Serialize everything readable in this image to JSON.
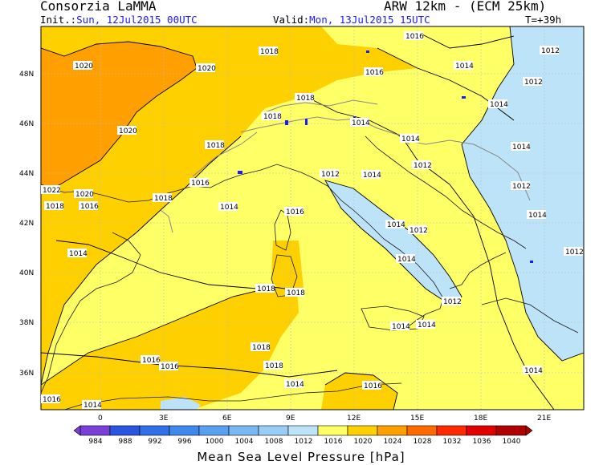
{
  "header": {
    "title": "Consorzia LaMMA",
    "model": "ARW 12km - (ECM 25km)",
    "init_label": "Init.:",
    "init_value": "Sun, 12Jul2015 00UTC",
    "valid_label": "Valid:",
    "valid_value": "Mon, 13Jul2015 15UTC",
    "lead": "T=+39h"
  },
  "map": {
    "lat_labels": [
      "48N",
      "46N",
      "44N",
      "42N",
      "40N",
      "38N",
      "36N"
    ],
    "lon_labels": [
      "0",
      "3E",
      "6E",
      "9E",
      "12E",
      "15E",
      "18E",
      "21E"
    ],
    "contour_labels": [
      {
        "text": "1016",
        "k": 0
      },
      {
        "text": "1018",
        "k": 1
      },
      {
        "text": "1020",
        "k": 2
      },
      {
        "text": "1020",
        "k": 3
      },
      {
        "text": "1016",
        "k": 4
      },
      {
        "text": "1014",
        "k": 5
      },
      {
        "text": "1012",
        "k": 6
      },
      {
        "text": "1012",
        "k": 7
      },
      {
        "text": "1014",
        "k": 8
      },
      {
        "text": "1018",
        "k": 9
      },
      {
        "text": "1018",
        "k": 10
      },
      {
        "text": "1014",
        "k": 11
      },
      {
        "text": "1020",
        "k": 12
      },
      {
        "text": "1018",
        "k": 13
      },
      {
        "text": "1022",
        "k": 14
      },
      {
        "text": "1020",
        "k": 15
      },
      {
        "text": "1018",
        "k": 16
      },
      {
        "text": "1016",
        "k": 17
      },
      {
        "text": "1018",
        "k": 18
      },
      {
        "text": "1016",
        "k": 19
      },
      {
        "text": "1014",
        "k": 20
      },
      {
        "text": "1012",
        "k": 21
      },
      {
        "text": "1014",
        "k": 22
      },
      {
        "text": "1014",
        "k": 23
      },
      {
        "text": "1012",
        "k": 24
      },
      {
        "text": "1014",
        "k": 25
      },
      {
        "text": "1012",
        "k": 26
      },
      {
        "text": "1014",
        "k": 27
      },
      {
        "text": "1014",
        "k": 28
      },
      {
        "text": "1012",
        "k": 29
      },
      {
        "text": "1014",
        "k": 30
      },
      {
        "text": "1016",
        "k": 31
      },
      {
        "text": "1018",
        "k": 32
      },
      {
        "text": "1014",
        "k": 33
      },
      {
        "text": "1012",
        "k": 34
      },
      {
        "text": "1012",
        "k": 35
      },
      {
        "text": "1014",
        "k": 36
      },
      {
        "text": "1014",
        "k": 37
      },
      {
        "text": "1018",
        "k": 38
      },
      {
        "text": "1018",
        "k": 39
      },
      {
        "text": "1016",
        "k": 40
      },
      {
        "text": "1016",
        "k": 41
      },
      {
        "text": "1014",
        "k": 42
      },
      {
        "text": "1016",
        "k": 43
      },
      {
        "text": "1018",
        "k": 44
      },
      {
        "text": "1014",
        "k": 45
      },
      {
        "text": "1016",
        "k": 46
      },
      {
        "text": "1014",
        "k": 47
      }
    ]
  },
  "colorbar": {
    "ticks": [
      "984",
      "988",
      "992",
      "996",
      "1000",
      "1004",
      "1008",
      "1012",
      "1016",
      "1020",
      "1024",
      "1028",
      "1032",
      "1036",
      "1040"
    ],
    "colors": [
      "#7a3fd6",
      "#2a55e0",
      "#2f6fe8",
      "#3f88ee",
      "#5aa0f0",
      "#78b8f4",
      "#9acdf6",
      "#bde3f8",
      "#ffff66",
      "#ffd000",
      "#ffa000",
      "#ff6a00",
      "#ff2a00",
      "#e00000",
      "#b00000"
    ],
    "title": "Mean Sea Level Pressure [hPa]"
  },
  "colors": {
    "low_1012": "#bde3f8",
    "mid_1016": "#ffff66",
    "high_1018": "#ffd000",
    "high_1020": "#ffa000"
  }
}
